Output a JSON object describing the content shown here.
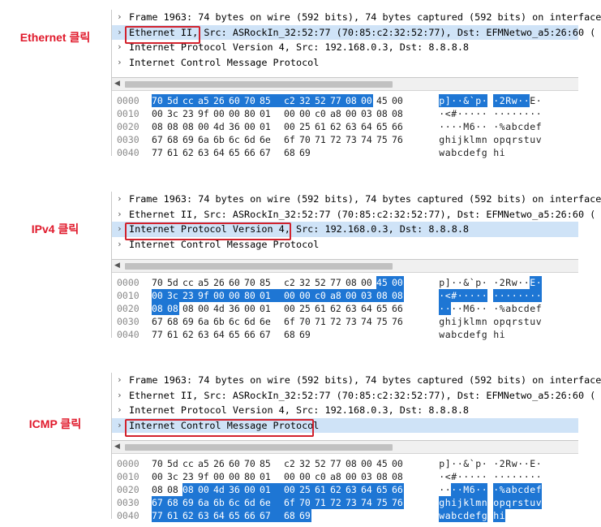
{
  "panels": [
    {
      "label": "Ethernet 클릭",
      "tree": [
        "Frame 1963: 74 bytes on wire (592 bits), 74 bytes captured (592 bits) on interface",
        "Ethernet II, Src: ASRockIn_32:52:77 (70:85:c2:32:52:77), Dst: EFMNetwo_a5:26:60 (",
        "Internet Protocol Version 4, Src: 192.168.0.3, Dst: 8.8.8.8",
        "Internet Control Message Protocol"
      ],
      "selected_row": 1,
      "highlight": [
        0,
        13
      ]
    },
    {
      "label": "IPv4 클릭",
      "tree": [
        "Frame 1963: 74 bytes on wire (592 bits), 74 bytes captured (592 bits) on interface",
        "Ethernet II, Src: ASRockIn_32:52:77 (70:85:c2:32:52:77), Dst: EFMNetwo_a5:26:60 (",
        "Internet Protocol Version 4, Src: 192.168.0.3, Dst: 8.8.8.8",
        "Internet Control Message Protocol"
      ],
      "selected_row": 2,
      "highlight": [
        14,
        33
      ]
    },
    {
      "label": "ICMP 클릭",
      "tree": [
        "Frame 1963: 74 bytes on wire (592 bits), 74 bytes captured (592 bits) on interface",
        "Ethernet II, Src: ASRockIn_32:52:77 (70:85:c2:32:52:77), Dst: EFMNetwo_a5:26:60 (",
        "Internet Protocol Version 4, Src: 192.168.0.3, Dst: 8.8.8.8",
        "Internet Control Message Protocol"
      ],
      "selected_row": 3,
      "highlight": [
        34,
        73
      ]
    }
  ],
  "hex_dump": {
    "offsets": [
      "0000",
      "0010",
      "0020",
      "0030",
      "0040"
    ],
    "bytes": [
      [
        "70",
        "5d",
        "cc",
        "a5",
        "26",
        "60",
        "70",
        "85",
        "c2",
        "32",
        "52",
        "77",
        "08",
        "00",
        "45",
        "00"
      ],
      [
        "00",
        "3c",
        "23",
        "9f",
        "00",
        "00",
        "80",
        "01",
        "00",
        "00",
        "c0",
        "a8",
        "00",
        "03",
        "08",
        "08"
      ],
      [
        "08",
        "08",
        "08",
        "00",
        "4d",
        "36",
        "00",
        "01",
        "00",
        "25",
        "61",
        "62",
        "63",
        "64",
        "65",
        "66"
      ],
      [
        "67",
        "68",
        "69",
        "6a",
        "6b",
        "6c",
        "6d",
        "6e",
        "6f",
        "70",
        "71",
        "72",
        "73",
        "74",
        "75",
        "76"
      ],
      [
        "77",
        "61",
        "62",
        "63",
        "64",
        "65",
        "66",
        "67",
        "68",
        "69"
      ]
    ],
    "ascii": [
      [
        "p",
        "]",
        "·",
        "·",
        "&",
        "`",
        "p",
        "·",
        "·",
        "2",
        "R",
        "w",
        "·",
        "·",
        "E",
        "·"
      ],
      [
        "·",
        "<",
        "#",
        "·",
        "·",
        "·",
        "·",
        "·",
        "·",
        "·",
        "·",
        "·",
        "·",
        "·",
        "·",
        "·"
      ],
      [
        "·",
        "·",
        "·",
        "·",
        "M",
        "6",
        "·",
        "·",
        "·",
        "%",
        "a",
        "b",
        "c",
        "d",
        "e",
        "f"
      ],
      [
        "g",
        "h",
        "i",
        "j",
        "k",
        "l",
        "m",
        "n",
        "o",
        "p",
        "q",
        "r",
        "s",
        "t",
        "u",
        "v"
      ],
      [
        "w",
        "a",
        "b",
        "c",
        "d",
        "e",
        "f",
        "g",
        "h",
        "i"
      ]
    ]
  }
}
